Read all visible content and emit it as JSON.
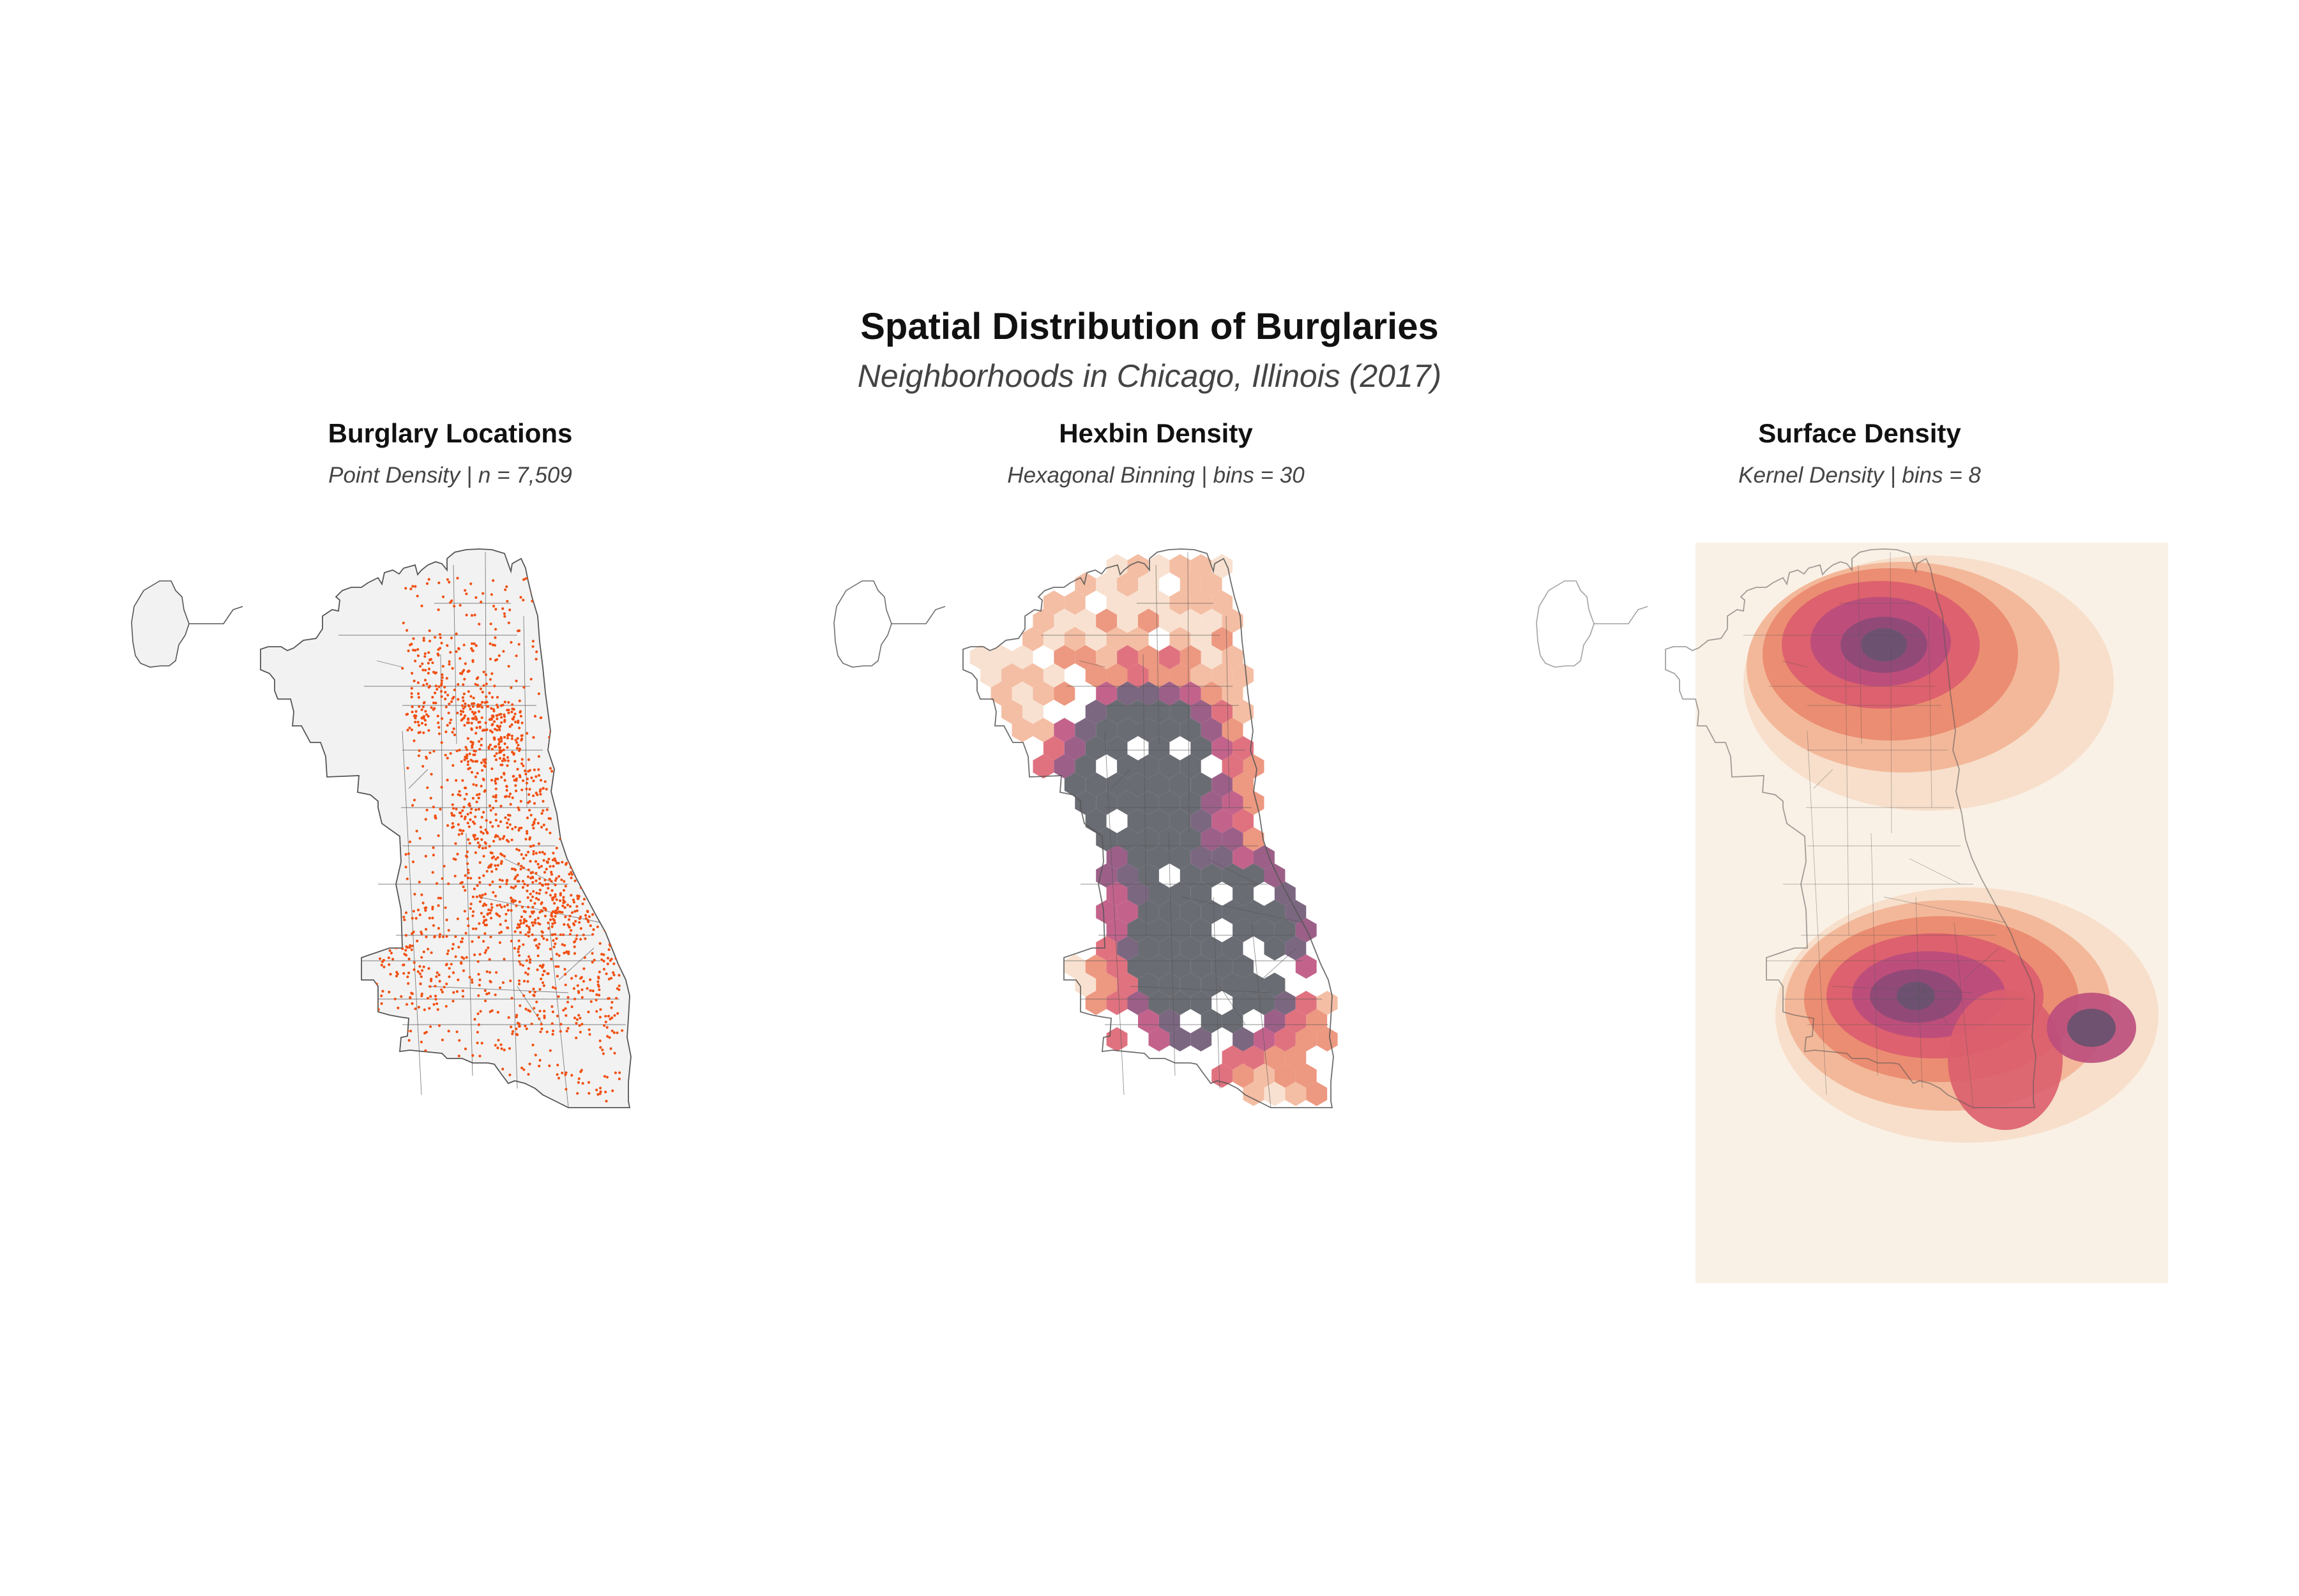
{
  "figure": {
    "title": "Spatial Distribution of Burglaries",
    "subtitle": "Neighborhoods in Chicago, Illinois (2017)"
  },
  "panels": [
    {
      "title": "Burglary Locations",
      "subtitle": "Point Density | n = 7,509"
    },
    {
      "title": "Hexbin Density",
      "subtitle": "Hexagonal Binning | bins = 30"
    },
    {
      "title": "Surface Density",
      "subtitle": "Kernel Density | bins = 8"
    }
  ],
  "colors": {
    "land_fill": "#f2f2f2",
    "boundary_stroke": "#555555",
    "point_color": "#f05014",
    "surface_background": "#faf1e6",
    "density_ramp": [
      "#f7ddc9",
      "#f2b597",
      "#ea8a70",
      "#dc5f6e",
      "#bb4d7c",
      "#8e4a78",
      "#6a5270",
      "#555860"
    ]
  },
  "chart_data": [
    {
      "type": "scatter",
      "title": "Burglary Locations",
      "n": 7509
    },
    {
      "type": "heatmap",
      "title": "Hexbin Density",
      "bins": 30
    },
    {
      "type": "heatmap",
      "title": "Surface Density",
      "bins": 8
    }
  ]
}
